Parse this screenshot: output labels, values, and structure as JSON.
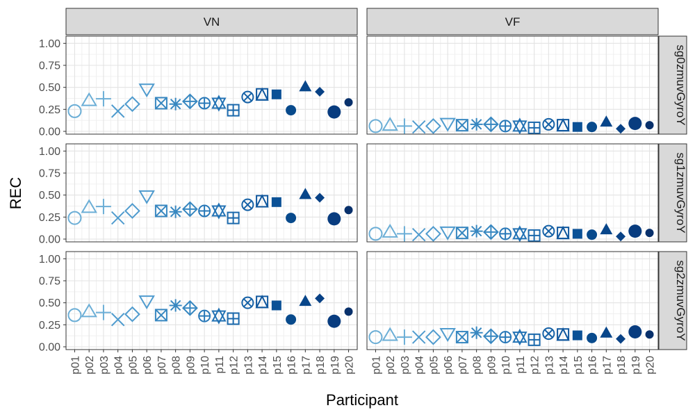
{
  "chart_data": {
    "type": "scatter",
    "xlabel": "Participant",
    "ylabel": "REC",
    "ylim": [
      0,
      1.05
    ],
    "yticks": [
      "0.00",
      "0.25",
      "0.50",
      "0.75",
      "1.00"
    ],
    "categories": [
      "p01",
      "p02",
      "p03",
      "p04",
      "p05",
      "p06",
      "p07",
      "p08",
      "p09",
      "p10",
      "p11",
      "p12",
      "p13",
      "p14",
      "p15",
      "p16",
      "p17",
      "p18",
      "p19",
      "p20"
    ],
    "columns": [
      "VN",
      "VF"
    ],
    "rows": [
      "sg0zmuvGyroY",
      "sg1zmuvGyroY",
      "sg2zmuvGyroY"
    ],
    "grid": true,
    "legend": "none",
    "shapes": [
      "circle-open",
      "triangle-open",
      "plus",
      "cross",
      "diamond-open",
      "triangle-down-open",
      "square-cross",
      "asterisk",
      "diamond-plus",
      "circle-plus",
      "triangles-up-down",
      "square-plus",
      "circle-cross",
      "square-triangle",
      "square",
      "circle",
      "triangle",
      "diamond",
      "circle-large",
      "circle-small"
    ],
    "colors": [
      "#6baed6",
      "#6baed6",
      "#6baed6",
      "#4f9bce",
      "#4f9bce",
      "#4f9bce",
      "#3787c0",
      "#3787c0",
      "#3787c0",
      "#2878b8",
      "#2272b4",
      "#1b69ac",
      "#1561a6",
      "#0f579e",
      "#0b5196",
      "#084a8c",
      "#08468a",
      "#084185",
      "#083c7f",
      "#08306b"
    ],
    "panels": [
      {
        "row": "sg0zmuvGyroY",
        "col": "VN",
        "values": [
          0.23,
          0.35,
          0.37,
          0.23,
          0.31,
          0.48,
          0.32,
          0.31,
          0.34,
          0.32,
          0.32,
          0.24,
          0.39,
          0.42,
          0.42,
          0.24,
          0.51,
          0.45,
          0.22,
          0.33
        ]
      },
      {
        "row": "sg0zmuvGyroY",
        "col": "VF",
        "values": [
          0.06,
          0.07,
          0.06,
          0.05,
          0.06,
          0.09,
          0.07,
          0.08,
          0.08,
          0.06,
          0.06,
          0.04,
          0.08,
          0.07,
          0.05,
          0.05,
          0.11,
          0.03,
          0.09,
          0.07
        ]
      },
      {
        "row": "sg1zmuvGyroY",
        "col": "VN",
        "values": [
          0.24,
          0.36,
          0.37,
          0.24,
          0.32,
          0.49,
          0.32,
          0.31,
          0.34,
          0.32,
          0.32,
          0.24,
          0.39,
          0.43,
          0.42,
          0.24,
          0.51,
          0.47,
          0.23,
          0.33
        ]
      },
      {
        "row": "sg1zmuvGyroY",
        "col": "VF",
        "values": [
          0.06,
          0.08,
          0.06,
          0.05,
          0.06,
          0.08,
          0.07,
          0.09,
          0.08,
          0.06,
          0.06,
          0.04,
          0.09,
          0.07,
          0.06,
          0.05,
          0.11,
          0.03,
          0.09,
          0.07
        ]
      },
      {
        "row": "sg2zmuvGyroY",
        "col": "VN",
        "values": [
          0.36,
          0.4,
          0.39,
          0.31,
          0.37,
          0.52,
          0.36,
          0.47,
          0.44,
          0.35,
          0.35,
          0.32,
          0.5,
          0.51,
          0.47,
          0.31,
          0.52,
          0.55,
          0.29,
          0.4
        ]
      },
      {
        "row": "sg2zmuvGyroY",
        "col": "VF",
        "values": [
          0.11,
          0.13,
          0.11,
          0.11,
          0.11,
          0.15,
          0.11,
          0.16,
          0.12,
          0.11,
          0.11,
          0.08,
          0.15,
          0.14,
          0.13,
          0.1,
          0.16,
          0.09,
          0.17,
          0.14
        ]
      }
    ]
  }
}
